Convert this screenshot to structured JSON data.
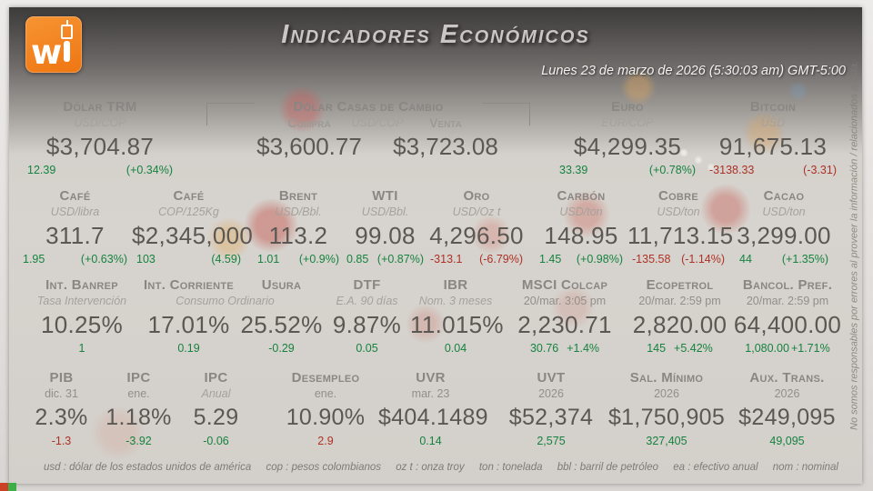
{
  "header": {
    "title": "Indicadores Económicos",
    "datetime": "Lunes 23 de marzo de 2026 (5:30:03 am) GMT-5:00",
    "logo_letter": "w"
  },
  "row1": {
    "trm": {
      "label": "Dólar TRM",
      "sub": "USD/COP",
      "value": "$3,704.87",
      "change": "12.39",
      "pct": "(+0.34%)",
      "dir": "pos"
    },
    "casas": {
      "label": "Dólar Casas de Cambio",
      "buy_label": "Compra",
      "unit": "USD/COP",
      "sell_label": "Venta",
      "buy_value": "$3,600.77",
      "sell_value": "$3,723.08"
    },
    "euro": {
      "label": "Euro",
      "sub": "EUR/COP",
      "value": "$4,299.35",
      "change": "33.39",
      "pct": "(+0.78%)",
      "dir": "pos"
    },
    "bitcoin": {
      "label": "Bitcoin",
      "sub": "USD",
      "value": "91,675.13",
      "change": "-3138.33",
      "pct": "(-3.31)",
      "dir": "neg"
    }
  },
  "row2": [
    {
      "label": "Café",
      "sub": "USD/libra",
      "value": "311.7",
      "change": "1.95",
      "pct": "(+0.63%)",
      "dir": "pos"
    },
    {
      "label": "Café",
      "sub": "COP/125Kg",
      "value": "$2,345,000",
      "change": "103",
      "pct": "(4.59)",
      "dir": "pos"
    },
    {
      "label": "Brent",
      "sub": "USD/Bbl.",
      "value": "113.2",
      "change": "1.01",
      "pct": "(+0.9%)",
      "dir": "pos"
    },
    {
      "label": "WTI",
      "sub": "USD/Bbl.",
      "value": "99.08",
      "change": "0.85",
      "pct": "(+0.87%)",
      "dir": "pos"
    },
    {
      "label": "Oro",
      "sub": "USD/Oz t",
      "value": "4,296.50",
      "change": "-313.1",
      "pct": "(-6.79%)",
      "dir": "neg"
    },
    {
      "label": "Carbón",
      "sub": "USD/ton",
      "value": "148.95",
      "change": "1.45",
      "pct": "(+0.98%)",
      "dir": "pos"
    },
    {
      "label": "Cobre",
      "sub": "USD/ton",
      "value": "11,713.15",
      "change": "-135.58",
      "pct": "(-1.14%)",
      "dir": "neg"
    },
    {
      "label": "Cacao",
      "sub": "USD/ton",
      "value": "3,299.00",
      "change": "44",
      "pct": "(+1.35%)",
      "dir": "pos"
    }
  ],
  "row3": {
    "shared_sub": "Consumo Ordinario",
    "cells": [
      {
        "label": "Int. Banrep",
        "sub": "Tasa Intervención",
        "value": "10.25%",
        "change": "1",
        "pct": "",
        "dir": "pos"
      },
      {
        "label": "Int. Corriente",
        "sub": "",
        "value": "17.01%",
        "change": "0.19",
        "pct": "",
        "dir": "pos"
      },
      {
        "label": "Usura",
        "sub": "",
        "value": "25.52%",
        "change": "-0.29",
        "pct": "",
        "dir": "pos"
      },
      {
        "label": "DTF",
        "sub": "E.A. 90 días",
        "value": "9.87%",
        "change": "0.05",
        "pct": "",
        "dir": "pos"
      },
      {
        "label": "IBR",
        "sub": "Nom. 3 meses",
        "value": "11.015%",
        "change": "0.04",
        "pct": "",
        "dir": "pos"
      },
      {
        "label": "MSCI Colcap",
        "sub": "20/mar. 3:05 pm",
        "value": "2,230.71",
        "change": "30.76",
        "pct": "+1.4%",
        "dir": "pos"
      },
      {
        "label": "Ecopetrol",
        "sub": "20/mar. 2:59 pm",
        "value": "2,820.00",
        "change": "145",
        "pct": "+5.42%",
        "dir": "pos"
      },
      {
        "label": "Bancol. Pref.",
        "sub": "20/mar. 2:59 pm",
        "value": "64,400.00",
        "change": "1,080.00",
        "pct": "+1.71%",
        "dir": "pos"
      }
    ]
  },
  "row4": [
    {
      "label": "PIB",
      "sub": "dic. 31",
      "value": "2.3%",
      "change": "-1.3",
      "dir": "neg"
    },
    {
      "label": "IPC",
      "sub": "ene.",
      "value": "1.18%",
      "change": "-3.92",
      "dir": "pos"
    },
    {
      "label": "IPC",
      "sub": "Anual",
      "value": "5.29",
      "change": "-0.06",
      "dir": "pos"
    },
    {
      "label": "Desempleo",
      "sub": "ene.",
      "value": "10.90%",
      "change": "2.9",
      "dir": "neg"
    },
    {
      "label": "UVR",
      "sub": "mar. 23",
      "value": "$404.1489",
      "change": "0.14",
      "dir": "pos"
    },
    {
      "label": "UVT",
      "sub": "2026",
      "value": "$52,374",
      "change": "2,575",
      "dir": "pos"
    },
    {
      "label": "Sal. Mínimo",
      "sub": "2026",
      "value": "$1,750,905",
      "change": "327,405",
      "dir": "pos"
    },
    {
      "label": "Aux. Trans.",
      "sub": "2026",
      "value": "$249,095",
      "change": "49,095",
      "dir": "pos"
    }
  ],
  "footer": {
    "glossary": [
      "usd : dólar de los estados unidos de américa",
      "cop : pesos colombianos",
      "oz t : onza troy",
      "ton : tonelada",
      "bbl : barril de petróleo",
      "ea : efectivo anual",
      "nom : nominal"
    ]
  },
  "disclaimer": "No somos responsables por errores al proveer la información / relacionados a ésta.",
  "colors": {
    "positive": "#15833f",
    "negative": "#ad3126",
    "accent_orange": "#ee7612"
  }
}
